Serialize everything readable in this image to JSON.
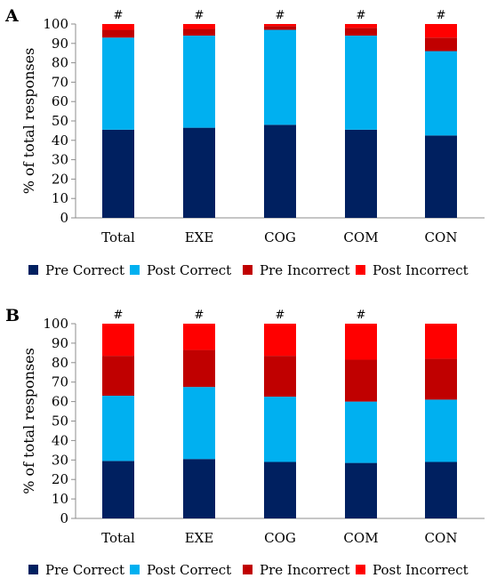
{
  "chart_data": [
    {
      "type": "bar",
      "stacked": true,
      "panel_label": "A",
      "ylabel": "% of total responses",
      "ylim": [
        0,
        100
      ],
      "yticks": [
        0,
        10,
        20,
        30,
        40,
        50,
        60,
        70,
        80,
        90,
        100
      ],
      "grid": false,
      "legend_position": "bottom",
      "categories": [
        "Total",
        "EXE",
        "COG",
        "COM",
        "CON"
      ],
      "annotations": [
        "#",
        "#",
        "#",
        "#",
        "#"
      ],
      "series": [
        {
          "name": "Pre Correct",
          "color": "#002060",
          "values": [
            45.5,
            46.5,
            48,
            45.5,
            42.5
          ]
        },
        {
          "name": "Post Correct",
          "color": "#00B0F0",
          "values": [
            47.5,
            47.5,
            49,
            48.5,
            43.5
          ]
        },
        {
          "name": "Pre Incorrect",
          "color": "#C00000",
          "values": [
            4,
            3.5,
            2,
            4,
            7
          ]
        },
        {
          "name": "Post Incorrect",
          "color": "#FF0000",
          "values": [
            3,
            2.5,
            1,
            2,
            7
          ]
        }
      ]
    },
    {
      "type": "bar",
      "stacked": true,
      "panel_label": "B",
      "ylabel": "% of total responses",
      "ylim": [
        0,
        100
      ],
      "yticks": [
        0,
        10,
        20,
        30,
        40,
        50,
        60,
        70,
        80,
        90,
        100
      ],
      "grid": false,
      "legend_position": "bottom",
      "categories": [
        "Total",
        "EXE",
        "COG",
        "COM",
        "CON"
      ],
      "annotations": [
        "#",
        "#",
        "#",
        "#",
        ""
      ],
      "series": [
        {
          "name": "Pre Correct",
          "color": "#002060",
          "values": [
            29.5,
            30.5,
            29,
            28.5,
            29
          ]
        },
        {
          "name": "Post Correct",
          "color": "#00B0F0",
          "values": [
            33.5,
            37,
            33.5,
            31.5,
            32
          ]
        },
        {
          "name": "Pre Incorrect",
          "color": "#C00000",
          "values": [
            20.5,
            19,
            21,
            21.5,
            21
          ]
        },
        {
          "name": "Post Incorrect",
          "color": "#FF0000",
          "values": [
            16.5,
            13.5,
            16.5,
            18.5,
            18
          ]
        }
      ]
    }
  ]
}
